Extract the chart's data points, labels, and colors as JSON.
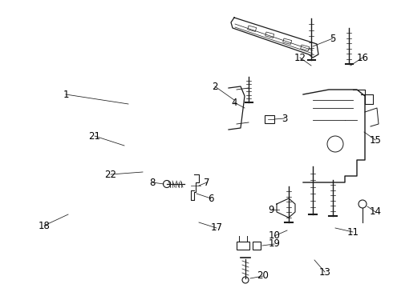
{
  "bg_color": "#ffffff",
  "line_color": "#1a1a1a",
  "label_color": "#000000",
  "font_size": 8.5,
  "fig_w": 4.9,
  "fig_h": 3.6,
  "dpi": 100
}
